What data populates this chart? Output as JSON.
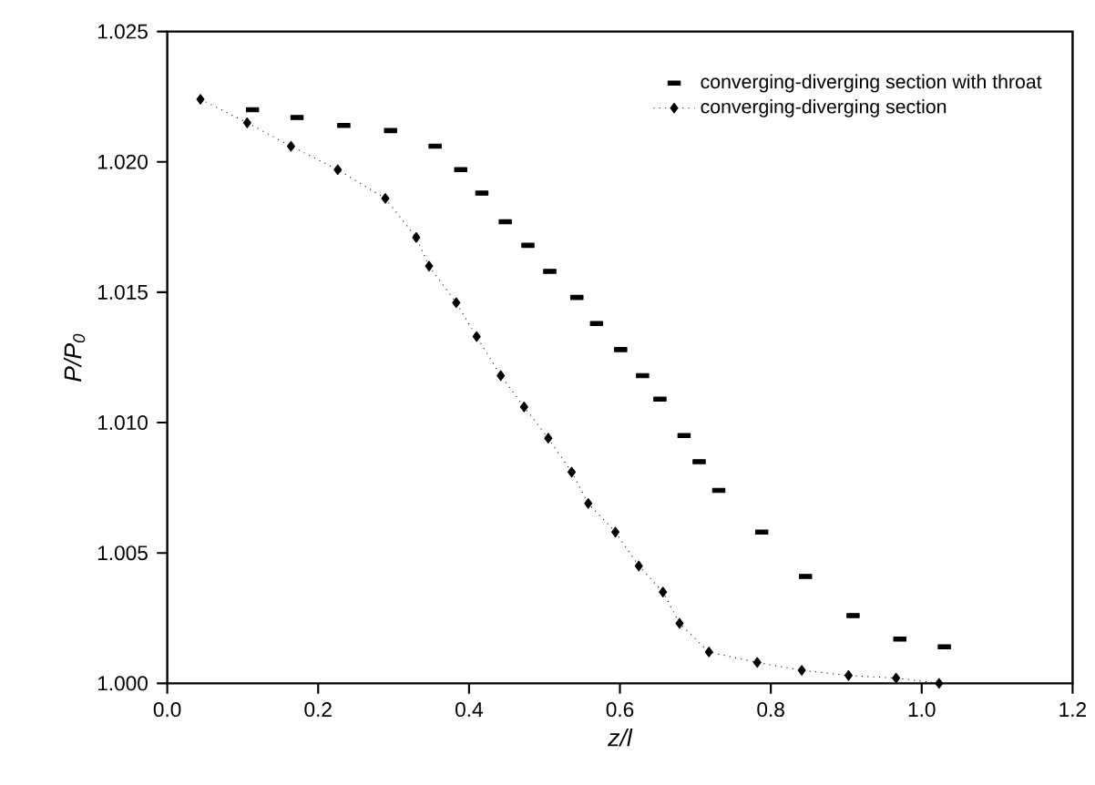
{
  "chart_data": {
    "type": "line",
    "xlabel": "z/l",
    "ylabel": "P/P$_{0}$",
    "xlim": [
      0,
      1.2
    ],
    "ylim": [
      1.0,
      1.025
    ],
    "xticks": [
      {
        "value": 0,
        "label": "0.0"
      },
      0.2,
      0.4,
      0.6,
      0.8,
      {
        "value": 1,
        "label": "1.0"
      },
      1.2
    ],
    "yticks": [
      {
        "value": 1.0,
        "label": "1.000"
      },
      1.005,
      {
        "value": 1.01,
        "label": "1.010"
      },
      1.015,
      {
        "value": 1.02,
        "label": "1.020"
      },
      1.025
    ],
    "legend": "top right",
    "grid": false,
    "series": [
      {
        "name": "converging-diverging section with throat",
        "type": "scatter",
        "marker": "square",
        "color": "#000000",
        "x": [
          0.113,
          0.172,
          0.234,
          0.296,
          0.355,
          0.389,
          0.417,
          0.448,
          0.478,
          0.507,
          0.543,
          0.569,
          0.601,
          0.63,
          0.653,
          0.685,
          0.705,
          0.731,
          0.788,
          0.846,
          0.909,
          0.971,
          1.03
        ],
        "values": [
          1.022,
          1.0217,
          1.0214,
          1.0212,
          1.0206,
          1.0197,
          1.0188,
          1.0177,
          1.0168,
          1.0158,
          1.0148,
          1.0138,
          1.0128,
          1.0118,
          1.0109,
          1.0095,
          1.0085,
          1.0074,
          1.0058,
          1.0041,
          1.0026,
          1.0017,
          1.0014
        ]
      },
      {
        "name": "converging-diverging section",
        "type": "line",
        "marker": "diamond",
        "line_style": "dotted",
        "color": "#000000",
        "x": [
          0.044,
          0.106,
          0.164,
          0.226,
          0.289,
          0.33,
          0.347,
          0.383,
          0.41,
          0.442,
          0.473,
          0.505,
          0.536,
          0.558,
          0.594,
          0.625,
          0.657,
          0.679,
          0.718,
          0.782,
          0.841,
          0.903,
          0.966,
          1.023
        ],
        "values": [
          1.0224,
          1.0215,
          1.0206,
          1.0197,
          1.0186,
          1.0171,
          1.016,
          1.0146,
          1.0133,
          1.0118,
          1.0106,
          1.0094,
          1.0081,
          1.0069,
          1.0058,
          1.0045,
          1.0035,
          1.0023,
          1.0012,
          1.0008,
          1.0005,
          1.0003,
          1.0002,
          1.0
        ]
      }
    ]
  }
}
